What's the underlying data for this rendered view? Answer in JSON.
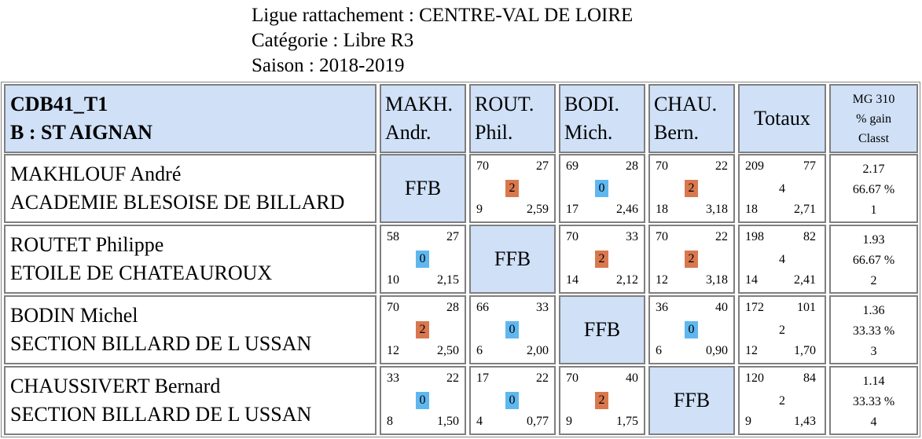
{
  "header": {
    "ligue": "Ligue rattachement : CENTRE-VAL DE LOIRE",
    "categorie": "Catégorie : Libre R3",
    "saison": "Saison : 2018-2019"
  },
  "table": {
    "group_code": "CDB41_T1",
    "group_name": "B : ST AIGNAN",
    "columns": [
      {
        "line1": "MAKH.",
        "line2": "Andr."
      },
      {
        "line1": "ROUT.",
        "line2": "Phil."
      },
      {
        "line1": "BODI.",
        "line2": "Mich."
      },
      {
        "line1": "CHAU.",
        "line2": "Bern."
      }
    ],
    "totals_label": "Totaux",
    "stats_header": {
      "line1": "MG 310",
      "line2": "% gain",
      "line3": "Classt"
    },
    "ffb_label": "FFB",
    "rows": [
      {
        "name": "MAKHLOUF André",
        "club": "ACADEMIE BLESOISE DE BILLARD",
        "matches": [
          null,
          {
            "points": "70",
            "opp": "27",
            "badge": "2",
            "innings": "9",
            "avg": "2,59"
          },
          {
            "points": "69",
            "opp": "28",
            "badge": "0",
            "innings": "17",
            "avg": "2,46"
          },
          {
            "points": "70",
            "opp": "22",
            "badge": "2",
            "innings": "18",
            "avg": "3,18"
          }
        ],
        "totals": {
          "points": "209",
          "opp": "77",
          "mp": "4",
          "innings": "18",
          "avg": "2,71"
        },
        "stats": {
          "mg": "2.17",
          "pct": "66.67 %",
          "rank": "1"
        }
      },
      {
        "name": "ROUTET Philippe",
        "club": "ETOILE DE CHATEAUROUX",
        "matches": [
          {
            "points": "58",
            "opp": "27",
            "badge": "0",
            "innings": "10",
            "avg": "2,15"
          },
          null,
          {
            "points": "70",
            "opp": "33",
            "badge": "2",
            "innings": "14",
            "avg": "2,12"
          },
          {
            "points": "70",
            "opp": "22",
            "badge": "2",
            "innings": "12",
            "avg": "3,18"
          }
        ],
        "totals": {
          "points": "198",
          "opp": "82",
          "mp": "4",
          "innings": "14",
          "avg": "2,41"
        },
        "stats": {
          "mg": "1.93",
          "pct": "66.67 %",
          "rank": "2"
        }
      },
      {
        "name": "BODIN Michel",
        "club": "SECTION BILLARD DE L USSAN",
        "matches": [
          {
            "points": "70",
            "opp": "28",
            "badge": "2",
            "innings": "12",
            "avg": "2,50"
          },
          {
            "points": "66",
            "opp": "33",
            "badge": "0",
            "innings": "6",
            "avg": "2,00"
          },
          null,
          {
            "points": "36",
            "opp": "40",
            "badge": "0",
            "innings": "6",
            "avg": "0,90"
          }
        ],
        "totals": {
          "points": "172",
          "opp": "101",
          "mp": "2",
          "innings": "12",
          "avg": "1,70"
        },
        "stats": {
          "mg": "1.36",
          "pct": "33.33 %",
          "rank": "3"
        }
      },
      {
        "name": "CHAUSSIVERT Bernard",
        "club": "SECTION BILLARD DE L USSAN",
        "matches": [
          {
            "points": "33",
            "opp": "22",
            "badge": "0",
            "innings": "8",
            "avg": "1,50"
          },
          {
            "points": "17",
            "opp": "22",
            "badge": "0",
            "innings": "4",
            "avg": "0,77"
          },
          {
            "points": "70",
            "opp": "40",
            "badge": "2",
            "innings": "9",
            "avg": "1,75"
          },
          null
        ],
        "totals": {
          "points": "120",
          "opp": "84",
          "mp": "2",
          "innings": "9",
          "avg": "1,43"
        },
        "stats": {
          "mg": "1.14",
          "pct": "33.33 %",
          "rank": "4"
        }
      }
    ],
    "colors": {
      "header_bg": "#cfe0f7",
      "win_badge": "#d9784e",
      "loss_badge": "#5fb7ef",
      "border": "#7f7f7f"
    }
  }
}
